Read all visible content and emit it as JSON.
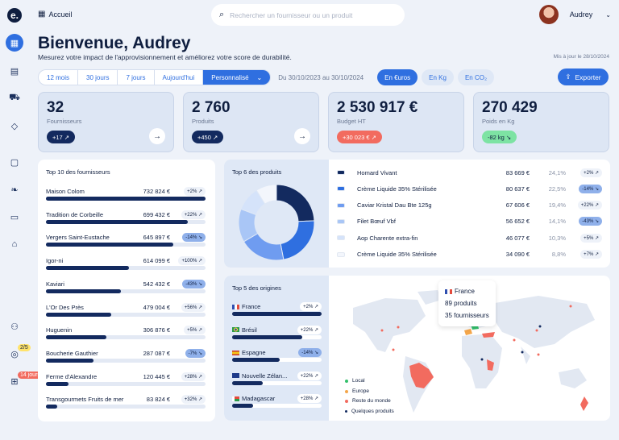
{
  "sidebar": {
    "logo": "e.",
    "badge_tasks": "2/5",
    "badge_days": "14 jours"
  },
  "topbar": {
    "home": "Accueil",
    "search_placeholder": "Rechercher un fournisseur ou un produit",
    "user_name": "Audrey"
  },
  "header": {
    "title": "Bienvenue, Audrey",
    "subtitle": "Mesurez votre impact de l'approvisionnement et améliorez votre score de durabilité.",
    "updated": "Mis à jour le 28/10/2024"
  },
  "filters": {
    "periods": [
      "12 mois",
      "30 jours",
      "7 jours",
      "Aujourd'hui",
      "Personnalisé"
    ],
    "date_range": "Du 30/10/2023 au 30/10/2024",
    "units": [
      "En €uros",
      "En Kg",
      "En CO₂"
    ],
    "export": "Exporter"
  },
  "kpis": [
    {
      "value": "32",
      "label": "Fournisseurs",
      "delta": "+17 ↗"
    },
    {
      "value": "2 760",
      "label": "Produits",
      "delta": "+450 ↗"
    },
    {
      "value": "2 530 917 €",
      "label": "Budget HT",
      "delta": "+30 023 € ↗"
    },
    {
      "value": "270 429",
      "label": "Poids en Kg",
      "delta": "-82 kg ↘"
    }
  ],
  "suppliers": {
    "title": "Top 10 des fournisseurs",
    "items": [
      {
        "name": "Maison Colom",
        "amount": "732 824 €",
        "change": "+2% ↗",
        "share": 1.0
      },
      {
        "name": "Tradition de Corbeille",
        "amount": "699 432 €",
        "change": "+22% ↗",
        "share": 0.89
      },
      {
        "name": "Vergers Saint-Eustache",
        "amount": "645 897 €",
        "change": "-14% ↘",
        "share": 0.8
      },
      {
        "name": "Igor-ni",
        "amount": "614 099 €",
        "change": "+100% ↗",
        "share": 0.52
      },
      {
        "name": "Kaviari",
        "amount": "542 432 €",
        "change": "-43% ↘",
        "share": 0.47
      },
      {
        "name": "L'Or Des Près",
        "amount": "479 004 €",
        "change": "+56% ↗",
        "share": 0.41
      },
      {
        "name": "Huguenin",
        "amount": "306 876 €",
        "change": "+5% ↗",
        "share": 0.38
      },
      {
        "name": "Boucherie Gauthier",
        "amount": "287 087 €",
        "change": "-7% ↘",
        "share": 0.3
      },
      {
        "name": "Ferme d'Alexandre",
        "amount": "120 445 €",
        "change": "+28% ↗",
        "share": 0.14
      },
      {
        "name": "Transgourmets Fruits de mer",
        "amount": "83 824 €",
        "change": "+32% ↗",
        "share": 0.07
      }
    ]
  },
  "products": {
    "title": "Top 6 des produits",
    "items": [
      {
        "name": "Homard Vivant",
        "value": "83 669 €",
        "pct": "24,1%",
        "change": "+2% ↗",
        "color": "#132a5f"
      },
      {
        "name": "Crème Liquide 35% Stérilisée",
        "value": "80 637 €",
        "pct": "22,5%",
        "change": "-14% ↘",
        "color": "#2f6fe0"
      },
      {
        "name": "Caviar Kristal Dau Bte 125g",
        "value": "67 606 €",
        "pct": "19,4%",
        "change": "+22% ↗",
        "color": "#6f9cf0"
      },
      {
        "name": "Filet Bœuf Vbf",
        "value": "56 652 €",
        "pct": "14,1%",
        "change": "-43% ↘",
        "color": "#a9c6f6"
      },
      {
        "name": "Aop Charente extra-fin",
        "value": "46 077 €",
        "pct": "10,3%",
        "change": "+5% ↗",
        "color": "#d5e3fa"
      },
      {
        "name": "Crème Liquide 35% Stérilisée",
        "value": "34 090 €",
        "pct": "8,8%",
        "change": "+7% ↗",
        "color": "#f3f6fc"
      }
    ],
    "donut_shares": [
      24.1,
      22.5,
      19.4,
      14.1,
      10.3,
      8.8
    ]
  },
  "origins": {
    "title": "Top 5 des origines",
    "items": [
      {
        "name": "France",
        "change": "+2% ↗",
        "share": 1.0
      },
      {
        "name": "Brésil",
        "change": "+22% ↗",
        "share": 0.78
      },
      {
        "name": "Espagne",
        "change": "-14% ↘",
        "share": 0.53
      },
      {
        "name": "Nouvelle Zélan...",
        "change": "+22% ↗",
        "share": 0.34
      },
      {
        "name": "Madagascar",
        "change": "+28% ↗",
        "share": 0.23
      }
    ],
    "tooltip": {
      "country": "France",
      "products": "89 produits",
      "suppliers": "35 fournisseurs"
    },
    "legend": [
      "Local",
      "Europe",
      "Reste du monde",
      "Quelques produits"
    ]
  },
  "colors": {
    "accent": "#2f6fe0",
    "navy": "#132a5f",
    "positive": "#7de3a3",
    "negative": "#f26b5f"
  }
}
